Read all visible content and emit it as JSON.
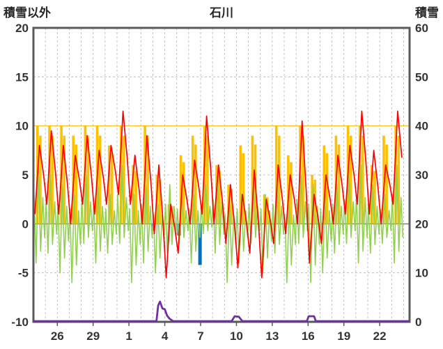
{
  "chart_data": {
    "type": "line",
    "title": "石川",
    "left_axis_label": "積雪以外",
    "right_axis_label": "積雪",
    "left_axis": {
      "min": -10,
      "max": 20,
      "ticks": [
        20,
        15,
        10,
        5,
        0,
        -5,
        -10
      ],
      "grid": [
        15,
        10,
        5,
        -5
      ]
    },
    "right_axis": {
      "min": 0,
      "max": 60,
      "ticks": [
        60,
        50,
        40,
        30,
        20,
        10,
        0
      ]
    },
    "x_axis": {
      "days": 31.5,
      "tick_days": [
        2,
        5,
        8,
        11,
        14,
        17,
        20,
        23,
        26,
        29
      ],
      "tick_labels": [
        "26",
        "29",
        "1",
        "4",
        "7",
        "10",
        "13",
        "16",
        "19",
        "22"
      ]
    },
    "reference_lines": {
      "sunshine_cap": 10,
      "zero": 0
    },
    "series": {
      "sunshine_bars": {
        "color": "#FFC000",
        "daily": [
          10,
          10,
          10,
          9,
          10,
          10,
          8,
          10,
          6,
          10,
          5,
          2,
          7,
          9,
          10,
          6,
          4,
          8,
          9,
          3,
          10,
          7,
          10,
          5,
          8,
          9,
          10,
          10,
          6,
          9,
          10
        ]
      },
      "temperature_line": {
        "color": "#FF0000",
        "daily_min": [
          1,
          2,
          1,
          0,
          2,
          1,
          2,
          3,
          2,
          0,
          -1,
          -5.5,
          -3,
          0,
          1,
          0,
          -2,
          -4.5,
          -3,
          -5.5,
          -2,
          -1,
          0,
          -4,
          -2,
          0,
          1,
          2,
          1,
          0,
          2
        ],
        "daily_max": [
          8,
          9.5,
          8,
          7,
          9,
          7.5,
          8,
          11.5,
          7,
          9,
          6,
          2,
          5,
          6.5,
          11,
          6,
          4,
          3,
          5.5,
          2.5,
          6,
          5,
          10.5,
          3,
          5,
          7,
          8,
          11.5,
          7.5,
          6,
          11.5
        ]
      },
      "green_line": {
        "color": "#92D050",
        "daily_min": [
          -4,
          -3,
          -5,
          -6,
          -2,
          -4,
          -3,
          -2,
          -6,
          -4,
          -5,
          -3,
          -2,
          -4,
          -1,
          -3,
          -6,
          -4,
          -2,
          -5,
          -3,
          -6,
          -2,
          -6,
          -5,
          -3,
          -2,
          -4,
          -3,
          -2,
          -4
        ],
        "daily_max": [
          6,
          5,
          4,
          3,
          5,
          4,
          3,
          6,
          3,
          4,
          2,
          4,
          3,
          3,
          4,
          5,
          2,
          3,
          4,
          3,
          4,
          2,
          5,
          4,
          3,
          4,
          5,
          6,
          4,
          3,
          6
        ]
      },
      "precipitation_bars": {
        "color": "#0070C0",
        "points": [
          {
            "day": 10.0,
            "value": -0.7
          },
          {
            "day": 12.2,
            "value": -1.2
          },
          {
            "day": 13.95,
            "value": -4.2
          }
        ]
      },
      "snow_depth_line": {
        "color": "#7030A0",
        "points": [
          [
            0,
            0
          ],
          [
            10.3,
            0
          ],
          [
            10.45,
            3.2
          ],
          [
            10.6,
            4.0
          ],
          [
            10.8,
            2.6
          ],
          [
            11.0,
            2.4
          ],
          [
            11.2,
            1.1
          ],
          [
            11.4,
            0.5
          ],
          [
            11.7,
            0
          ],
          [
            16.6,
            0
          ],
          [
            16.85,
            1.0
          ],
          [
            17.2,
            0.9
          ],
          [
            17.5,
            0
          ],
          [
            22.9,
            0
          ],
          [
            23.05,
            1.0
          ],
          [
            23.5,
            1.0
          ],
          [
            23.65,
            0
          ],
          [
            31.5,
            0
          ]
        ]
      }
    }
  }
}
